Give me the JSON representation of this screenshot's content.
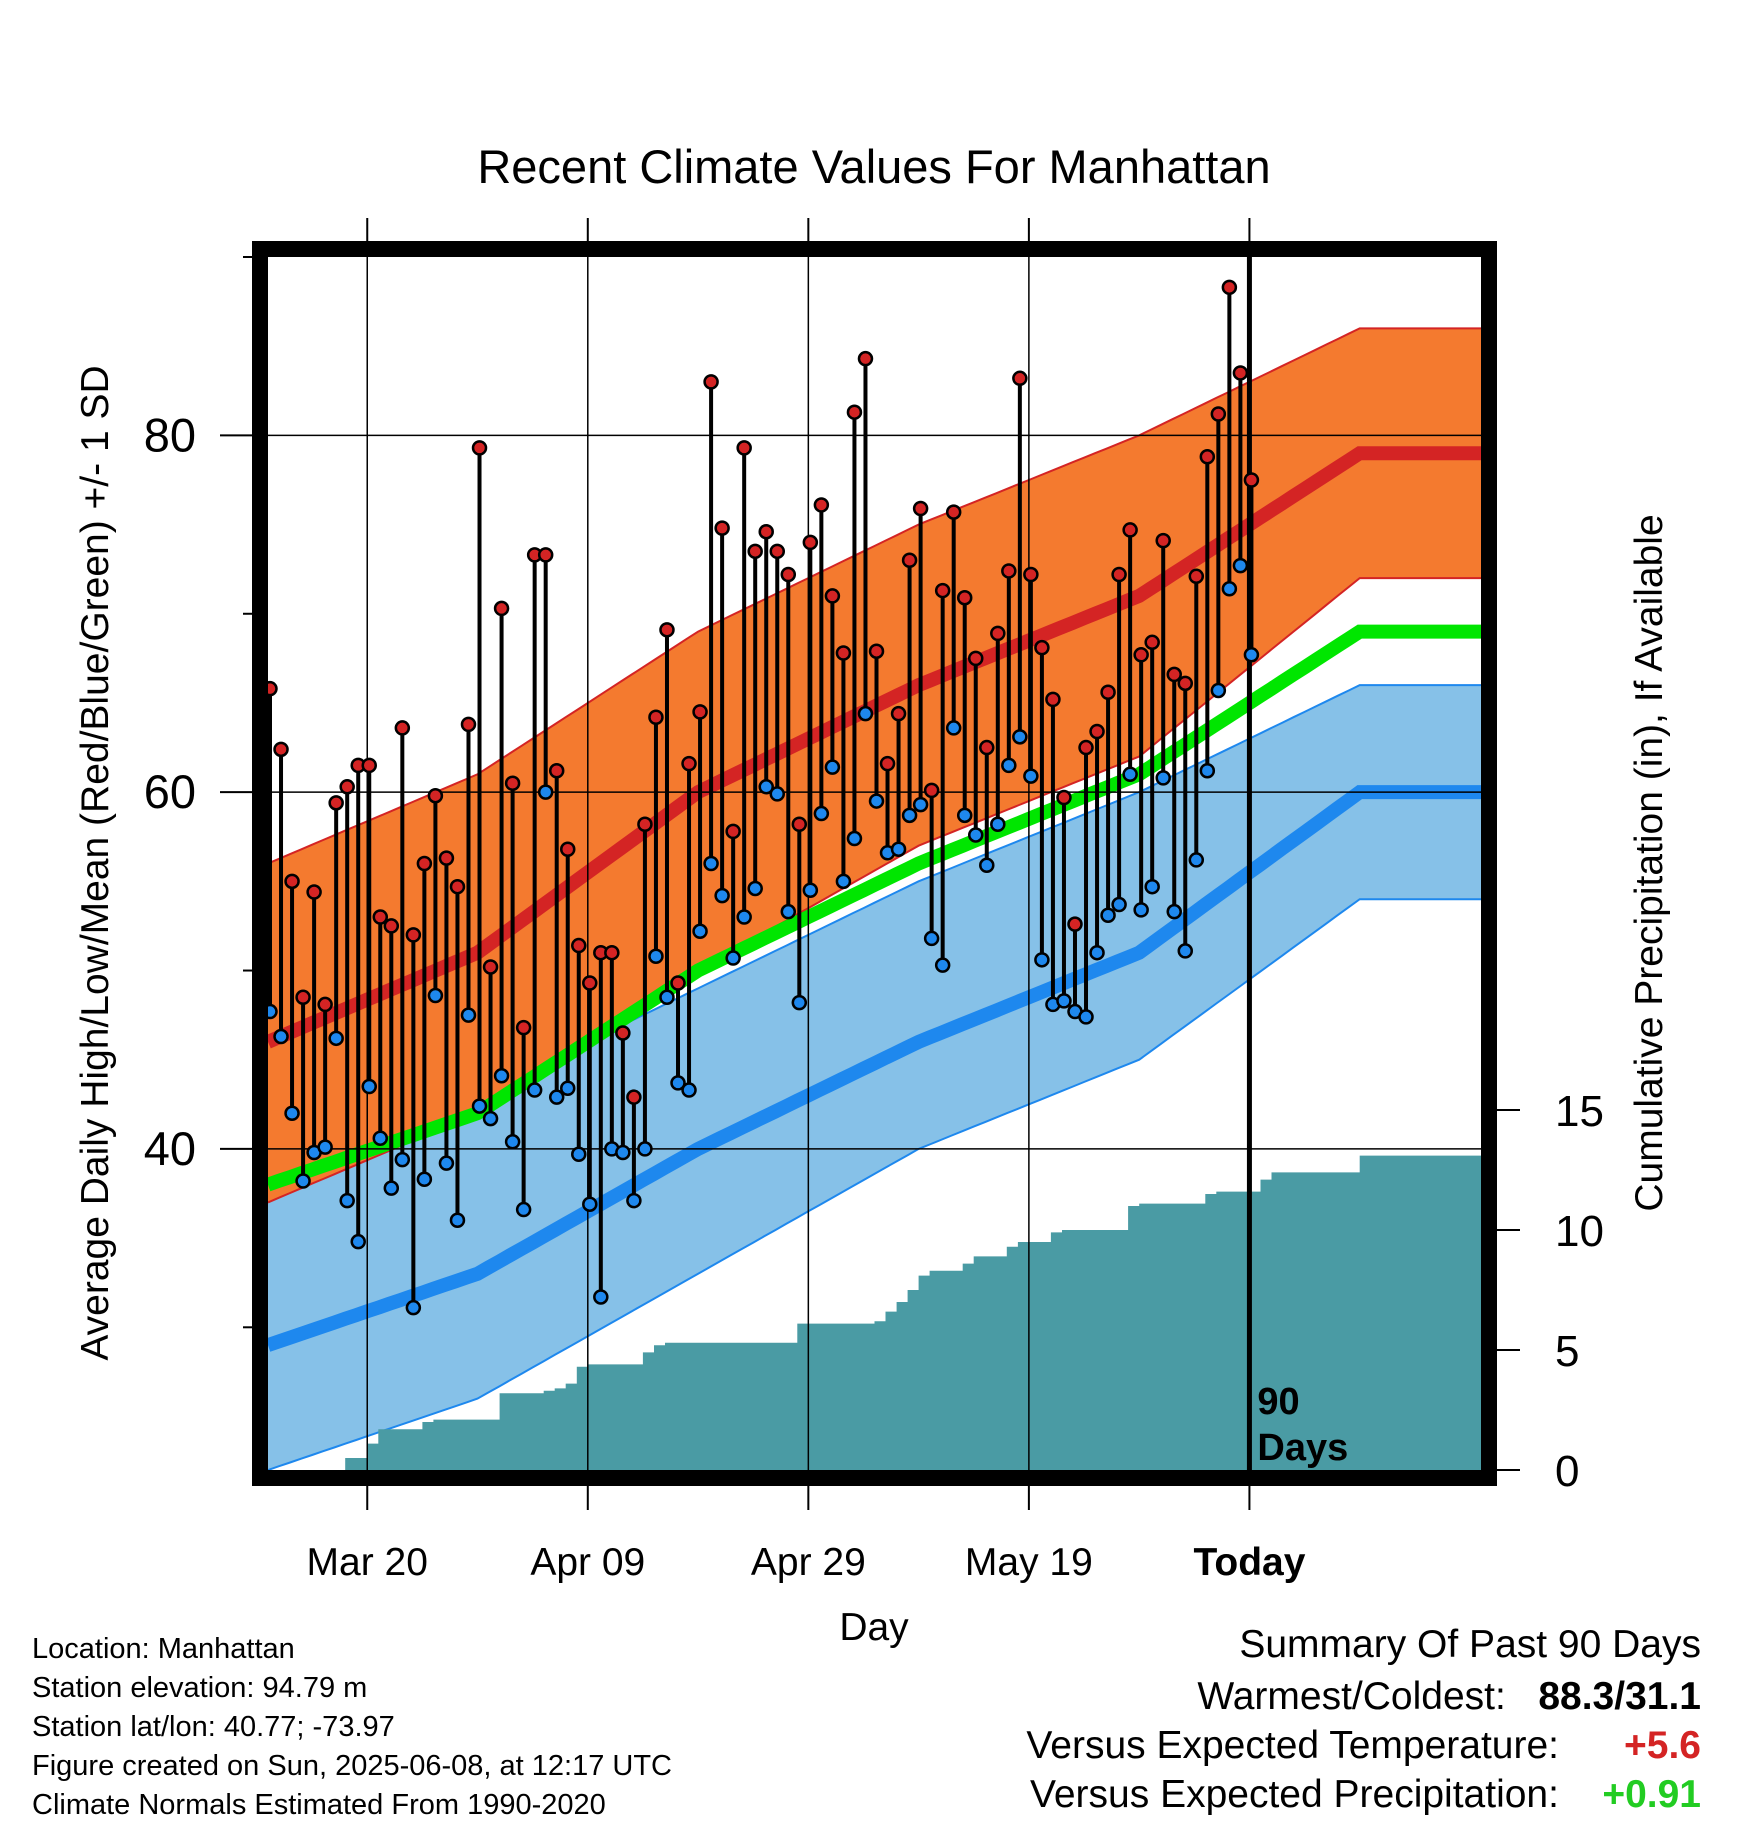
{
  "chart_data": {
    "type": "line",
    "title": "Recent Climate Values For Manhattan",
    "xlabel": "Day",
    "ylabel": "Average Daily High/Low/Mean (Red/Blue/Green) +/- 1 SD",
    "y2label": "Cumulative Precipitation (in), If Available",
    "x_ticks": [
      "Mar 20",
      "Apr 09",
      "Apr 29",
      "May 19",
      "Today"
    ],
    "y_ticks": [
      "40",
      "60",
      "80"
    ],
    "y2_ticks": [
      "0",
      "5",
      "10",
      "15"
    ],
    "ylim": [
      22,
      90
    ],
    "y2lim": [
      0,
      15
    ],
    "days_label": "90\nDays",
    "grid": true,
    "colors": {
      "high_band": "#f47a2f",
      "high_line": "#d42424",
      "low_band": "#86c1e8",
      "low_line": "#1e88ee",
      "mean_line": "#00e600",
      "precip": "#4a9ba4",
      "high_marker": "#d42424",
      "low_marker": "#1e88ee"
    },
    "normals": {
      "day": [
        -9,
        10,
        30,
        50,
        70,
        90
      ],
      "high_mean": [
        46,
        51,
        60,
        66,
        71,
        79
      ],
      "high_upper": [
        56,
        61,
        69,
        75,
        80,
        86
      ],
      "high_lower": [
        37,
        42,
        50,
        57,
        62,
        72
      ],
      "mean": [
        38,
        42,
        50,
        56,
        61,
        69
      ],
      "low_mean": [
        29,
        33,
        40,
        46,
        51,
        60
      ],
      "low_upper": [
        39,
        43,
        49,
        55,
        60,
        66
      ],
      "low_lower": [
        22,
        26,
        33,
        40,
        45,
        54
      ]
    },
    "daily": {
      "highs": [
        65.8,
        62.4,
        55.0,
        48.5,
        54.4,
        48.1,
        59.4,
        60.3,
        61.5,
        61.5,
        53.0,
        52.5,
        63.6,
        52.0,
        56.0,
        59.8,
        56.3,
        54.7,
        63.8,
        79.3,
        50.2,
        70.3,
        60.5,
        46.8,
        73.3,
        73.3,
        61.2,
        56.8,
        51.4,
        49.3,
        51.0,
        51.0,
        46.5,
        42.9,
        58.2,
        64.2,
        69.1,
        49.3,
        61.6,
        64.5,
        83.0,
        74.8,
        57.8,
        79.3,
        73.5,
        74.6,
        73.5,
        72.2,
        58.2,
        74.0,
        76.1,
        71.0,
        67.8,
        81.3,
        84.3,
        67.9,
        61.6,
        64.4,
        73.0,
        75.9,
        60.1,
        71.3,
        75.7,
        70.9,
        67.5,
        62.5,
        68.9,
        72.4,
        83.2,
        72.2,
        68.1,
        65.2,
        59.7,
        52.6,
        62.5,
        63.4,
        65.6,
        72.2,
        74.7,
        67.7,
        68.4,
        74.1,
        66.6,
        66.1,
        72.1,
        78.8,
        81.2,
        88.3,
        83.5,
        77.5
      ],
      "lows": [
        47.7,
        46.3,
        42.0,
        38.2,
        39.8,
        40.1,
        46.2,
        37.1,
        34.8,
        43.5,
        40.6,
        37.8,
        39.4,
        31.1,
        38.3,
        48.6,
        39.2,
        36.0,
        47.5,
        42.4,
        41.7,
        44.1,
        40.4,
        36.6,
        43.3,
        60.0,
        42.9,
        43.4,
        39.7,
        36.9,
        31.7,
        40.0,
        39.8,
        37.1,
        40.0,
        50.8,
        48.5,
        43.7,
        43.3,
        52.2,
        56.0,
        54.2,
        50.7,
        53.0,
        54.6,
        60.3,
        59.9,
        53.3,
        48.2,
        54.5,
        58.8,
        61.4,
        55.0,
        57.4,
        64.4,
        59.5,
        56.6,
        56.8,
        58.7,
        59.3,
        51.8,
        50.3,
        63.6,
        58.7,
        57.6,
        55.9,
        58.2,
        61.5,
        63.1,
        60.9,
        50.6,
        48.1,
        48.3,
        47.7,
        47.4,
        51.0,
        53.1,
        53.7,
        61.0,
        53.4,
        54.7,
        60.8,
        53.3,
        51.1,
        56.2,
        61.2,
        65.7,
        71.4,
        72.7,
        67.7
      ]
    },
    "precip_cumulative": [
      0,
      0,
      0,
      0,
      0,
      0,
      0,
      0.5,
      0.5,
      1.1,
      1.7,
      1.7,
      1.7,
      1.7,
      2.0,
      2.1,
      2.1,
      2.1,
      2.1,
      2.1,
      2.1,
      3.2,
      3.2,
      3.2,
      3.2,
      3.3,
      3.4,
      3.6,
      4.3,
      4.4,
      4.4,
      4.4,
      4.4,
      4.4,
      4.9,
      5.2,
      5.3,
      5.3,
      5.3,
      5.3,
      5.3,
      5.3,
      5.3,
      5.3,
      5.3,
      5.3,
      5.3,
      5.3,
      6.1,
      6.1,
      6.1,
      6.1,
      6.1,
      6.1,
      6.1,
      6.2,
      6.6,
      7.0,
      7.5,
      8.1,
      8.3,
      8.3,
      8.3,
      8.6,
      8.9,
      8.9,
      8.9,
      9.3,
      9.5,
      9.5,
      9.5,
      9.9,
      10.0,
      10.0,
      10.0,
      10.0,
      10.0,
      10.0,
      11.0,
      11.1,
      11.1,
      11.1,
      11.1,
      11.1,
      11.1,
      11.5,
      11.6,
      11.6,
      11.6,
      11.6,
      12.1,
      12.4,
      12.4,
      12.4,
      12.4,
      12.4,
      12.4,
      12.4,
      12.4,
      13.1,
      13.1,
      13.1,
      13.1,
      13.1,
      13.1,
      13.1,
      13.1,
      13.1,
      13.1,
      13.1,
      13.1
    ],
    "precip_step_days": [
      -9,
      -8,
      -7,
      -6,
      -5,
      -4,
      -3,
      -2,
      -1,
      0,
      1,
      2,
      3,
      4,
      5,
      6,
      7,
      8,
      9,
      10,
      11,
      12,
      13,
      14,
      15,
      16,
      17,
      18,
      19,
      20,
      21,
      22,
      23,
      24,
      25,
      26,
      27,
      28,
      29,
      30,
      31,
      32,
      33,
      34,
      35,
      36,
      37,
      38,
      39,
      40,
      41,
      42,
      43,
      44,
      45,
      46,
      47,
      48,
      49,
      50,
      51,
      52,
      53,
      54,
      55,
      56,
      57,
      58,
      59,
      60,
      61,
      62,
      63,
      64,
      65,
      66,
      67,
      68,
      69,
      70,
      71,
      72,
      73,
      74,
      75,
      76,
      77,
      78,
      79,
      80,
      81,
      82,
      83,
      84,
      85,
      86,
      87,
      88,
      89,
      90,
      91,
      92,
      93,
      94,
      95,
      96,
      97,
      98,
      99,
      100,
      101
    ]
  },
  "info": {
    "location": "Location: Manhattan",
    "elevation": "Station elevation: 94.79 m",
    "latlon": "Station lat/lon: 40.77; -73.97",
    "created": "Figure created on Sun, 2025-06-08, at 12:17 UTC",
    "normals": "Climate Normals Estimated From 1990-2020"
  },
  "summary": {
    "heading": "Summary Of Past 90 Days",
    "warm_cold_label": "Warmest/Coldest:",
    "warm_cold_value": "88.3/31.1",
    "temp_label": "Versus Expected Temperature:",
    "temp_value": "+5.6",
    "temp_color": "#d42424",
    "precip_label": "Versus Expected Precipitation:",
    "precip_value": "+0.91",
    "precip_color": "#22cc22"
  }
}
